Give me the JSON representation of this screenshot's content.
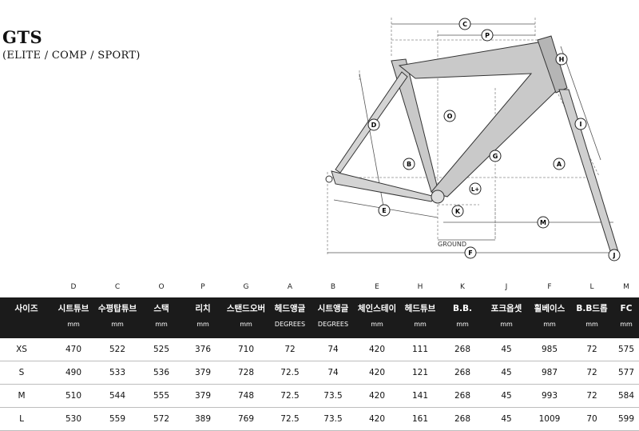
{
  "header": {
    "title": "GTS",
    "subtitle": "(ELITE / COMP / SPORT)"
  },
  "diagram": {
    "markers": [
      "C",
      "P",
      "H",
      "O",
      "D",
      "I",
      "G",
      "B",
      "A",
      "L+",
      "E",
      "K",
      "M",
      "J",
      "F"
    ],
    "ground_label": "GROUND"
  },
  "table": {
    "letters": [
      "",
      "D",
      "C",
      "O",
      "P",
      "G",
      "A",
      "B",
      "E",
      "H",
      "K",
      "J",
      "F",
      "L",
      "M"
    ],
    "names": [
      "사이즈",
      "시트튜브",
      "수평탑튜브",
      "스택",
      "리치",
      "스탠드오버",
      "헤드앵글",
      "시트앵글",
      "체인스테이",
      "헤드튜브",
      "B.B.",
      "포크옵셋",
      "휠베이스",
      "B.B드롭",
      "FC"
    ],
    "units": [
      "",
      "mm",
      "mm",
      "mm",
      "mm",
      "mm",
      "DEGREES",
      "DEGREES",
      "mm",
      "mm",
      "mm",
      "mm",
      "mm",
      "mm",
      "mm"
    ],
    "rows": [
      [
        "XS",
        "470",
        "522",
        "525",
        "376",
        "710",
        "72",
        "74",
        "420",
        "111",
        "268",
        "45",
        "985",
        "72",
        "575"
      ],
      [
        "S",
        "490",
        "533",
        "536",
        "379",
        "728",
        "72.5",
        "74",
        "420",
        "121",
        "268",
        "45",
        "987",
        "72",
        "577"
      ],
      [
        "M",
        "510",
        "544",
        "555",
        "379",
        "748",
        "72.5",
        "73.5",
        "420",
        "141",
        "268",
        "45",
        "993",
        "72",
        "584"
      ],
      [
        "L",
        "530",
        "559",
        "572",
        "389",
        "769",
        "72.5",
        "73.5",
        "420",
        "161",
        "268",
        "45",
        "1009",
        "70",
        "599"
      ]
    ]
  }
}
